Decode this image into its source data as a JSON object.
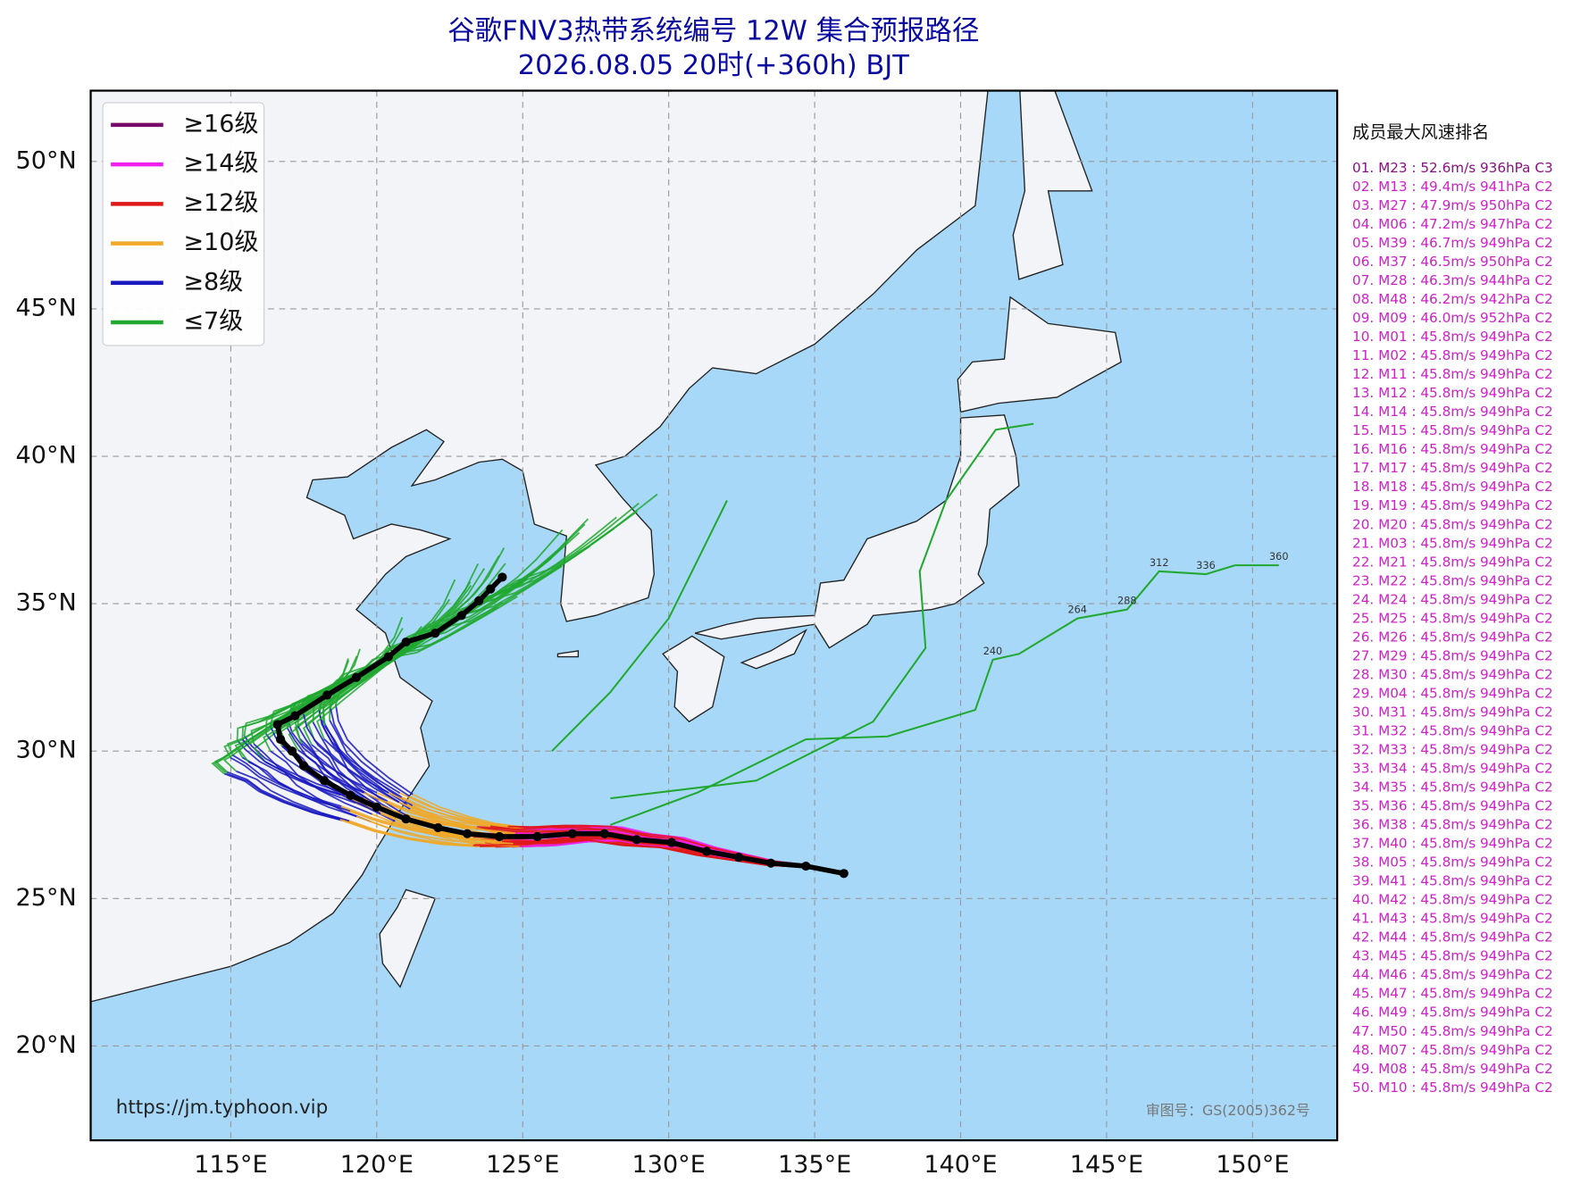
{
  "header": {
    "title": "谷歌FNV3热带系统编号 12W 集合预报路径",
    "subtitle": "2026.08.05 20时(+360h) BJT"
  },
  "map": {
    "xlim": [
      110.2,
      152.9
    ],
    "ylim": [
      16.8,
      52.4
    ],
    "xticks": [
      {
        "value": 115,
        "label": "115°E"
      },
      {
        "value": 120,
        "label": "120°E"
      },
      {
        "value": 125,
        "label": "125°E"
      },
      {
        "value": 130,
        "label": "130°E"
      },
      {
        "value": 135,
        "label": "135°E"
      },
      {
        "value": 140,
        "label": "140°E"
      },
      {
        "value": 145,
        "label": "145°E"
      },
      {
        "value": 150,
        "label": "150°E"
      }
    ],
    "yticks": [
      {
        "value": 20,
        "label": "20°N"
      },
      {
        "value": 25,
        "label": "25°N"
      },
      {
        "value": 30,
        "label": "30°N"
      },
      {
        "value": 35,
        "label": "35°N"
      },
      {
        "value": 40,
        "label": "40°N"
      },
      {
        "value": 45,
        "label": "45°N"
      },
      {
        "value": 50,
        "label": "50°N"
      }
    ],
    "grid": true
  },
  "legend": {
    "items": [
      {
        "name": "≥16级",
        "color": "#7a0a6a"
      },
      {
        "name": "≥14级",
        "color": "#f020f0"
      },
      {
        "name": "≥12级",
        "color": "#e01818"
      },
      {
        "name": "≥10级",
        "color": "#f0a828"
      },
      {
        "name": "≥8级",
        "color": "#1818c0"
      },
      {
        "name": "≤7级",
        "color": "#20a830"
      }
    ]
  },
  "track_labels": [
    "240",
    "264",
    "288",
    "312",
    "336",
    "360"
  ],
  "ranking": {
    "title": "成员最大风速排名",
    "items": [
      "01. M23 : 52.6m/s 936hPa C3",
      "02. M13 : 49.4m/s 941hPa C2",
      "03. M27 : 47.9m/s 950hPa C2",
      "04. M06 : 47.2m/s 947hPa C2",
      "05. M39 : 46.7m/s 949hPa C2",
      "06. M37 : 46.5m/s 950hPa C2",
      "07. M28 : 46.3m/s 944hPa C2",
      "08. M48 : 46.2m/s 942hPa C2",
      "09. M09 : 46.0m/s 952hPa C2",
      "10. M01 : 45.8m/s 949hPa C2",
      "11. M02 : 45.8m/s 949hPa C2",
      "12. M11 : 45.8m/s 949hPa C2",
      "13. M12 : 45.8m/s 949hPa C2",
      "14. M14 : 45.8m/s 949hPa C2",
      "15. M15 : 45.8m/s 949hPa C2",
      "16. M16 : 45.8m/s 949hPa C2",
      "17. M17 : 45.8m/s 949hPa C2",
      "18. M18 : 45.8m/s 949hPa C2",
      "19. M19 : 45.8m/s 949hPa C2",
      "20. M20 : 45.8m/s 949hPa C2",
      "21. M03 : 45.8m/s 949hPa C2",
      "22. M21 : 45.8m/s 949hPa C2",
      "23. M22 : 45.8m/s 949hPa C2",
      "24. M24 : 45.8m/s 949hPa C2",
      "25. M25 : 45.8m/s 949hPa C2",
      "26. M26 : 45.8m/s 949hPa C2",
      "27. M29 : 45.8m/s 949hPa C2",
      "28. M30 : 45.8m/s 949hPa C2",
      "29. M04 : 45.8m/s 949hPa C2",
      "30. M31 : 45.8m/s 949hPa C2",
      "31. M32 : 45.8m/s 949hPa C2",
      "32. M33 : 45.8m/s 949hPa C2",
      "33. M34 : 45.8m/s 949hPa C2",
      "34. M35 : 45.8m/s 949hPa C2",
      "35. M36 : 45.8m/s 949hPa C2",
      "36. M38 : 45.8m/s 949hPa C2",
      "37. M40 : 45.8m/s 949hPa C2",
      "38. M05 : 45.8m/s 949hPa C2",
      "39. M41 : 45.8m/s 949hPa C2",
      "40. M42 : 45.8m/s 949hPa C2",
      "41. M43 : 45.8m/s 949hPa C2",
      "42. M44 : 45.8m/s 949hPa C2",
      "43. M45 : 45.8m/s 949hPa C2",
      "44. M46 : 45.8m/s 949hPa C2",
      "45. M47 : 45.8m/s 949hPa C2",
      "46. M49 : 45.8m/s 949hPa C2",
      "47. M50 : 45.8m/s 949hPa C2",
      "48. M07 : 45.8m/s 949hPa C2",
      "49. M08 : 45.8m/s 949hPa C2",
      "50. M10 : 45.8m/s 949hPa C2"
    ]
  },
  "footer": {
    "url": "https://jm.typhoon.vip",
    "approval": "审图号：GS(2005)362号"
  }
}
